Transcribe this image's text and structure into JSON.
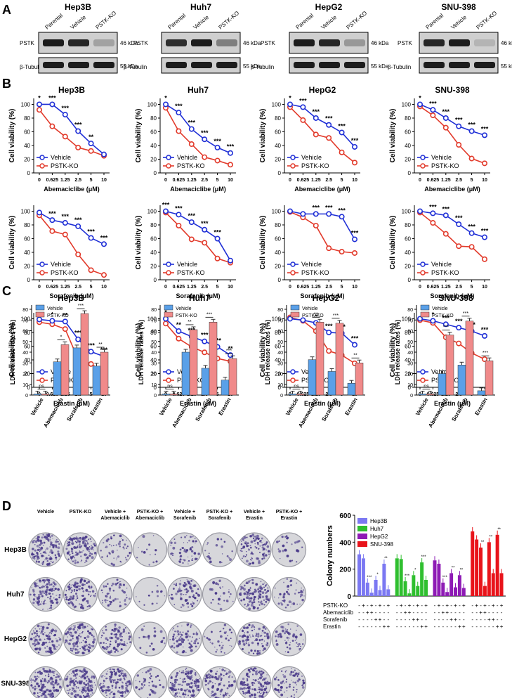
{
  "panel_letters": [
    "A",
    "B",
    "C",
    "D"
  ],
  "colors": {
    "vehicle": "#1f2fd6",
    "pstk": "#e23a2b",
    "barVehicle": "#5aa0e8",
    "barPstk": "#f08a8a",
    "d_hep3b": "#7b78f2",
    "d_huh7": "#2fbf2f",
    "d_hepg2": "#8e1bb5",
    "d_snu398": "#e8141b",
    "blot_band": "#1c1c1c",
    "blot_bg": "#cfcfcf",
    "dish": "#d7d7db",
    "colony": "#4a3a8a"
  },
  "western": {
    "lanes": [
      "Parental",
      "Vehicle",
      "PSTK-KO"
    ],
    "row_labels": [
      "PSTK",
      "β-Tubulin"
    ],
    "kda": [
      "46 kDa",
      "55 kDa"
    ],
    "cells": [
      {
        "name": "Hep3B",
        "pstk": [
          1.0,
          0.95,
          0.25
        ],
        "tub": [
          1.0,
          1.0,
          1.0
        ]
      },
      {
        "name": "Huh7",
        "pstk": [
          0.9,
          1.0,
          0.45
        ],
        "tub": [
          1.0,
          1.0,
          1.0
        ]
      },
      {
        "name": "HepG2",
        "pstk": [
          1.0,
          0.95,
          0.3
        ],
        "tub": [
          1.0,
          1.0,
          1.0
        ]
      },
      {
        "name": "SNU-398",
        "pstk": [
          0.95,
          1.0,
          0.15
        ],
        "tub": [
          1.0,
          1.0,
          1.0
        ]
      }
    ]
  },
  "viability": {
    "ylabel": "Cell viability (%)",
    "xticks": [
      "0",
      "0.625",
      "1.25",
      "2.5",
      "5",
      "10"
    ],
    "yticks": [
      "0",
      "20",
      "40",
      "60",
      "80",
      "100"
    ],
    "legend": [
      "Vehicle",
      "PSTK-KO"
    ],
    "rows": [
      {
        "drug": "Abemaciclibe (μM)",
        "panels": [
          {
            "title": "Hep3B",
            "veh": [
              100,
              100,
              85,
              61,
              43,
              27
            ],
            "ko": [
              92,
              68,
              53,
              37,
              32,
              25
            ],
            "sig": [
              "*",
              "***",
              "***",
              "***",
              "**",
              ""
            ]
          },
          {
            "title": "Huh7",
            "veh": [
              100,
              88,
              64,
              49,
              37,
              29
            ],
            "ko": [
              95,
              61,
              42,
              23,
              18,
              12
            ],
            "sig": [
              "*",
              "***",
              "***",
              "***",
              "***",
              "***"
            ]
          },
          {
            "title": "HepG2",
            "veh": [
              100,
              96,
              80,
              70,
              59,
              38
            ],
            "ko": [
              96,
              77,
              56,
              51,
              30,
              15
            ],
            "sig": [
              "*",
              "***",
              "***",
              "***",
              "***",
              "***"
            ]
          },
          {
            "title": "SNU-398",
            "veh": [
              100,
              92,
              80,
              68,
              61,
              55
            ],
            "ko": [
              97,
              84,
              66,
              41,
              21,
              14
            ],
            "sig": [
              "*",
              "***",
              "***",
              "***",
              "***",
              "***"
            ]
          }
        ]
      },
      {
        "drug": "Sorafenib (μM)",
        "panels": [
          {
            "title": "",
            "veh": [
              98,
              87,
              83,
              78,
              61,
              52
            ],
            "ko": [
              94,
              71,
              66,
              37,
              14,
              7
            ],
            "sig": [
              "",
              "***",
              "***",
              "***",
              "***",
              "***"
            ]
          },
          {
            "title": "",
            "veh": [
              100,
              95,
              84,
              73,
              60,
              28
            ],
            "ko": [
              98,
              79,
              59,
              54,
              31,
              25
            ],
            "sig": [
              "***",
              "***",
              "***",
              "***",
              "***",
              ""
            ]
          },
          {
            "title": "",
            "veh": [
              100,
              96,
              96,
              96,
              92,
              59
            ],
            "ko": [
              99,
              91,
              79,
              46,
              41,
              39
            ],
            "sig": [
              "",
              "",
              "***",
              "***",
              "***",
              "***"
            ]
          },
          {
            "title": "",
            "veh": [
              100,
              97,
              94,
              81,
              68,
              62
            ],
            "ko": [
              98,
              83,
              67,
              49,
              48,
              30
            ],
            "sig": [
              "",
              "***",
              "***",
              "***",
              "***",
              "***"
            ]
          }
        ]
      },
      {
        "drug": "Erastin (μM)",
        "panels": [
          {
            "title": "",
            "veh": [
              99,
              97,
              96,
              70,
              52,
              45
            ],
            "ko": [
              95,
              92,
              85,
              41,
              34,
              22
            ],
            "sig": [
              "",
              "*",
              "**",
              "***",
              "***",
              "***"
            ]
          },
          {
            "title": "",
            "veh": [
              100,
              82,
              74,
              67,
              59,
              47
            ],
            "ko": [
              93,
              71,
              59,
              51,
              42,
              38
            ],
            "sig": [
              "*",
              "**",
              "***",
              "***",
              "***",
              "**"
            ]
          },
          {
            "title": "",
            "veh": [
              100,
              98,
              94,
              80,
              79,
              62
            ],
            "ko": [
              102,
              97,
              82,
              53,
              47,
              35
            ],
            "sig": [
              "",
              "",
              "*",
              "***",
              "***",
              "***"
            ]
          },
          {
            "title": "",
            "veh": [
              100,
              97,
              92,
              87,
              82,
              75
            ],
            "ko": [
              98,
              94,
              73,
              64,
              50,
              41
            ],
            "sig": [
              "",
              "*",
              "***",
              "***",
              "***",
              "***"
            ]
          }
        ]
      }
    ]
  },
  "ldh": {
    "ylabel": "LDH release rates (%)",
    "categories": [
      "Vehicle",
      "Abemaciclib",
      "Sorafenib",
      "Erastin"
    ],
    "legend": [
      "Vehicle",
      "PSTK-KO"
    ],
    "panels": [
      {
        "title": "Hep3B",
        "veh": [
          1,
          31,
          44,
          27
        ],
        "ko": [
          1,
          47,
          76,
          40
        ],
        "sig": [
          "ns",
          "*",
          "***",
          "**"
        ]
      },
      {
        "title": "Huh7",
        "veh": [
          1,
          40,
          25,
          14
        ],
        "ko": [
          1,
          61,
          68,
          34
        ],
        "sig": [
          "ns",
          "**",
          "***",
          "***"
        ]
      },
      {
        "title": "HepG2",
        "veh": [
          1,
          33,
          22,
          11
        ],
        "ko": [
          1,
          68,
          67,
          30
        ],
        "sig": [
          "ns",
          "***",
          "***",
          "**"
        ]
      },
      {
        "title": "SNU-398",
        "veh": [
          1,
          20,
          28,
          4
        ],
        "ko": [
          1,
          56,
          69,
          32
        ],
        "sig": [
          "ns",
          "***",
          "***",
          "***"
        ]
      }
    ],
    "yticks": [
      "0",
      "10",
      "20",
      "30",
      "40",
      "50",
      "60",
      "70",
      "80"
    ]
  },
  "colonies": {
    "columns": [
      "Vehicle",
      "PSTK-KO",
      "Vehicle +\nAbemaciclib",
      "PSTK-KO +\nAbemaciclib",
      "Vehicle +\nSorafenib",
      "PSTK-KO +\nSorafenib",
      "Vehicle +\nErastin",
      "PSTK-KO +\nErastin"
    ],
    "rows": [
      "Hep3B",
      "Huh7",
      "HepG2",
      "SNU-398"
    ],
    "density": [
      [
        0.9,
        0.85,
        0.35,
        0.1,
        0.4,
        0.15,
        0.7,
        0.2
      ],
      [
        0.8,
        0.75,
        0.4,
        0.1,
        0.5,
        0.2,
        0.8,
        0.35
      ],
      [
        0.85,
        0.8,
        0.6,
        0.15,
        0.55,
        0.25,
        0.6,
        0.4
      ],
      [
        1.0,
        1.0,
        0.9,
        0.3,
        0.9,
        0.6,
        0.95,
        0.5
      ]
    ]
  },
  "colony_chart": {
    "ylabel": "Colony numbers",
    "yticks": [
      "0",
      "200",
      "400",
      "600"
    ],
    "legend": [
      "Hep3B",
      "Huh7",
      "HepG2",
      "SNU-398"
    ],
    "values": [
      [
        310,
        280,
        100,
        25,
        120,
        45,
        240,
        50
      ],
      [
        280,
        275,
        110,
        20,
        155,
        75,
        250,
        120
      ],
      [
        265,
        240,
        100,
        30,
        170,
        65,
        155,
        60
      ],
      [
        480,
        420,
        360,
        75,
        400,
        170,
        455,
        170
      ]
    ],
    "sig": [
      [
        "***",
        "*",
        "**"
      ],
      [
        "***",
        "*",
        "***"
      ],
      [
        "***",
        "**",
        "**"
      ],
      [
        "**",
        "**",
        "**"
      ]
    ],
    "table_labels": [
      "PSTK-KO",
      "Abemaciclib",
      "Sorafenib",
      "Erastin"
    ],
    "table": [
      [
        "-",
        "+",
        "-",
        "+",
        "-",
        "+",
        "-",
        "+"
      ],
      [
        "-",
        "-",
        "+",
        "+",
        "-",
        "-",
        "-",
        "-"
      ],
      [
        "-",
        "-",
        "-",
        "-",
        "+",
        "+",
        "-",
        "-"
      ],
      [
        "-",
        "-",
        "-",
        "-",
        "-",
        "-",
        "+",
        "+"
      ]
    ]
  }
}
